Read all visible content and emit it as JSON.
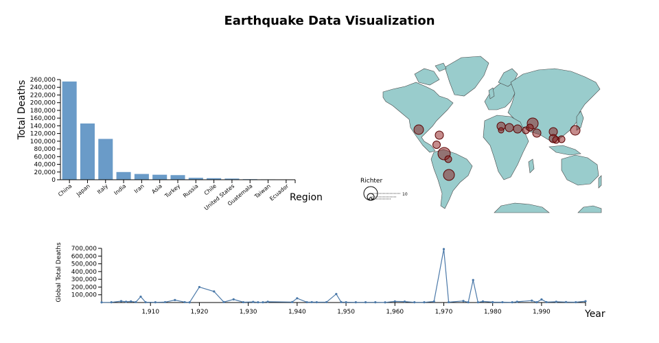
{
  "page": {
    "title": "Earthquake Data Visualization"
  },
  "bar_chart_data": {
    "type": "bar",
    "ylabel": "Total Deaths",
    "xlabel": "Region",
    "ylim": [
      0,
      260000
    ],
    "yticks": [
      0,
      20000,
      40000,
      60000,
      80000,
      100000,
      120000,
      140000,
      160000,
      180000,
      200000,
      220000,
      240000,
      260000
    ],
    "yticks_labels": [
      "0",
      "20,000",
      "40,000",
      "60,000",
      "80,000",
      "100,000",
      "120,000",
      "140,000",
      "160,000",
      "180,000",
      "200,000",
      "220,000",
      "240,000",
      "260,000"
    ],
    "categories": [
      "China",
      "Japan",
      "Italy",
      "India",
      "Iran",
      "Asia",
      "Turkey",
      "Russia",
      "Chile",
      "United States",
      "Guatemala",
      "Taiwan",
      "Ecuador"
    ],
    "values": [
      255000,
      146000,
      106000,
      20000,
      15000,
      13000,
      12000,
      5000,
      4000,
      3000,
      1500,
      1000,
      500
    ]
  },
  "map": {
    "legend_title": "Richter",
    "legend_value": "10",
    "land_color": "#99cccc",
    "marker_color": "#8b1a1a"
  },
  "chart_data": {
    "type": "line",
    "ylabel": "Global Total Deaths",
    "xlabel": "Year",
    "xlim": [
      1900,
      1999
    ],
    "ylim": [
      0,
      700000
    ],
    "xticks": [
      1910,
      1920,
      1930,
      1940,
      1950,
      1960,
      1970,
      1980,
      1990
    ],
    "xticks_labels": [
      "1,910",
      "1,920",
      "1,930",
      "1,940",
      "1,950",
      "1,960",
      "1,970",
      "1,980",
      "1,990"
    ],
    "yticks": [
      100000,
      200000,
      300000,
      400000,
      500000,
      600000,
      700000
    ],
    "yticks_labels": [
      "100,000",
      "200,000",
      "300,000",
      "400,000",
      "500,000",
      "600,000",
      "700,000"
    ],
    "x": [
      1900,
      1902,
      1904,
      1905,
      1906,
      1907,
      1908,
      1909,
      1911,
      1913,
      1915,
      1917,
      1918,
      1920,
      1923,
      1925,
      1927,
      1929,
      1931,
      1932,
      1933,
      1934,
      1939,
      1940,
      1942,
      1943,
      1944,
      1946,
      1948,
      1949,
      1950,
      1952,
      1954,
      1956,
      1958,
      1960,
      1962,
      1964,
      1966,
      1968,
      1970,
      1971,
      1974,
      1975,
      1976,
      1977,
      1978,
      1980,
      1982,
      1984,
      1985,
      1988,
      1989,
      1990,
      1991,
      1993,
      1995,
      1997,
      1999
    ],
    "y": [
      2000,
      3000,
      18000,
      10000,
      15000,
      5000,
      75000,
      4000,
      3000,
      5000,
      32000,
      5000,
      2000,
      200000,
      143000,
      6000,
      41000,
      4000,
      8000,
      3000,
      3000,
      10000,
      6000,
      55000,
      4000,
      5000,
      4000,
      5000,
      110000,
      6000,
      4000,
      3000,
      3000,
      3000,
      2000,
      15000,
      12000,
      3000,
      3000,
      13000,
      690000,
      4000,
      20000,
      3000,
      290000,
      3000,
      15000,
      5000,
      4000,
      3000,
      10000,
      25000,
      3000,
      40000,
      5000,
      10000,
      6000,
      4000,
      17000
    ]
  }
}
